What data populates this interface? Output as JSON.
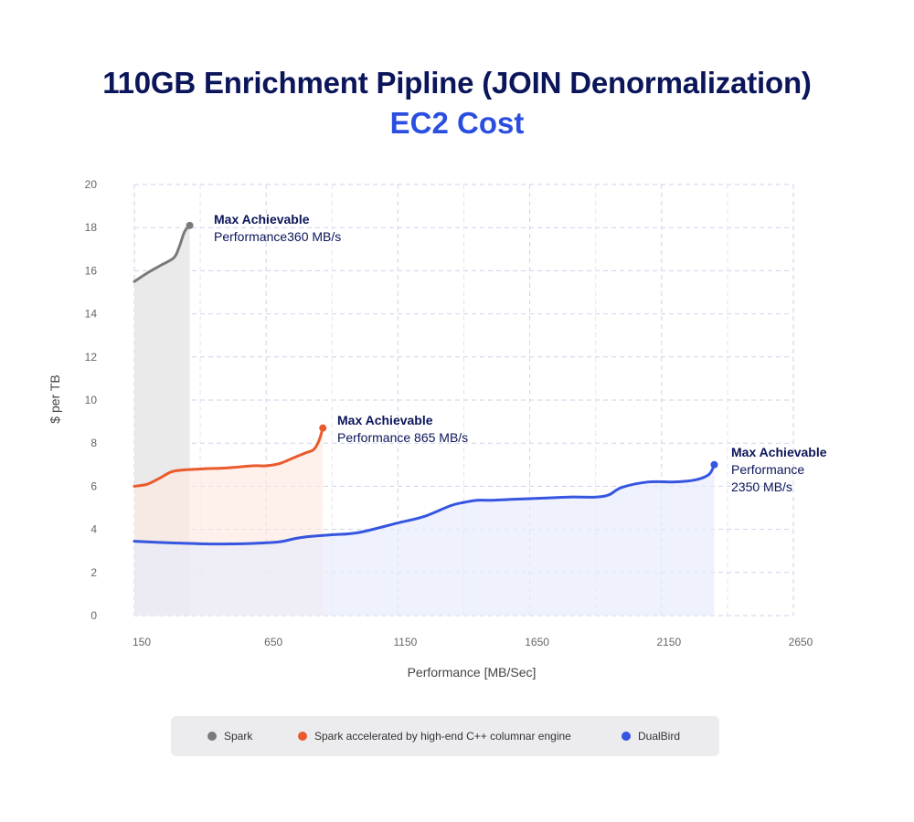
{
  "title": "110GB Enrichment Pipline (JOIN Denormalization)",
  "subtitle": "EC2 Cost",
  "chart_data": {
    "type": "area",
    "title": "110GB Enrichment Pipline (JOIN Denormalization)",
    "subtitle": "EC2 Cost",
    "xlabel": "Performance [MB/Sec]",
    "ylabel": "$ per TB",
    "xlim": [
      150,
      2650
    ],
    "ylim": [
      0,
      20
    ],
    "xticks": [
      150,
      650,
      1150,
      1650,
      2150,
      2650
    ],
    "yticks": [
      0,
      2,
      4,
      6,
      8,
      10,
      12,
      14,
      16,
      18,
      20
    ],
    "grid": true,
    "legend_position": "bottom",
    "series": [
      {
        "name": "Spark",
        "color": "#7a7a7a",
        "fill": "#e9e9ea",
        "x": [
          150,
          200,
          250,
          300,
          320,
          340,
          360
        ],
        "y": [
          15.5,
          15.9,
          16.25,
          16.6,
          17.1,
          17.8,
          18.1
        ],
        "annotation_line1": "Max Achievable",
        "annotation_line2": "Performance360 MB/s"
      },
      {
        "name": "Spark accelerated by high-end C++ columnar engine",
        "color": "#ea5a2c",
        "fill": "#fde8de",
        "x": [
          150,
          200,
          250,
          300,
          400,
          500,
          600,
          650,
          700,
          750,
          800,
          830,
          850,
          865
        ],
        "y": [
          6.0,
          6.1,
          6.4,
          6.7,
          6.8,
          6.85,
          6.95,
          6.95,
          7.05,
          7.3,
          7.55,
          7.7,
          8.1,
          8.7
        ],
        "annotation_line1": "Max Achievable",
        "annotation_line2": "Performance 865 MB/s"
      },
      {
        "name": "DualBird",
        "color": "#3655e0",
        "fill": "#e7ebfc",
        "x": [
          150,
          300,
          450,
          600,
          700,
          750,
          800,
          900,
          1000,
          1150,
          1250,
          1350,
          1400,
          1450,
          1500,
          1600,
          1700,
          1800,
          1900,
          1950,
          2000,
          2100,
          2200,
          2280,
          2330,
          2350
        ],
        "y": [
          3.45,
          3.37,
          3.32,
          3.35,
          3.42,
          3.55,
          3.65,
          3.75,
          3.85,
          4.3,
          4.6,
          5.1,
          5.25,
          5.35,
          5.35,
          5.4,
          5.45,
          5.5,
          5.5,
          5.6,
          5.95,
          6.2,
          6.2,
          6.3,
          6.55,
          7.0
        ],
        "annotation_line1": "Max Achievable",
        "annotation_line2": "Performance",
        "annotation_line3": "2350 MB/s"
      }
    ]
  }
}
